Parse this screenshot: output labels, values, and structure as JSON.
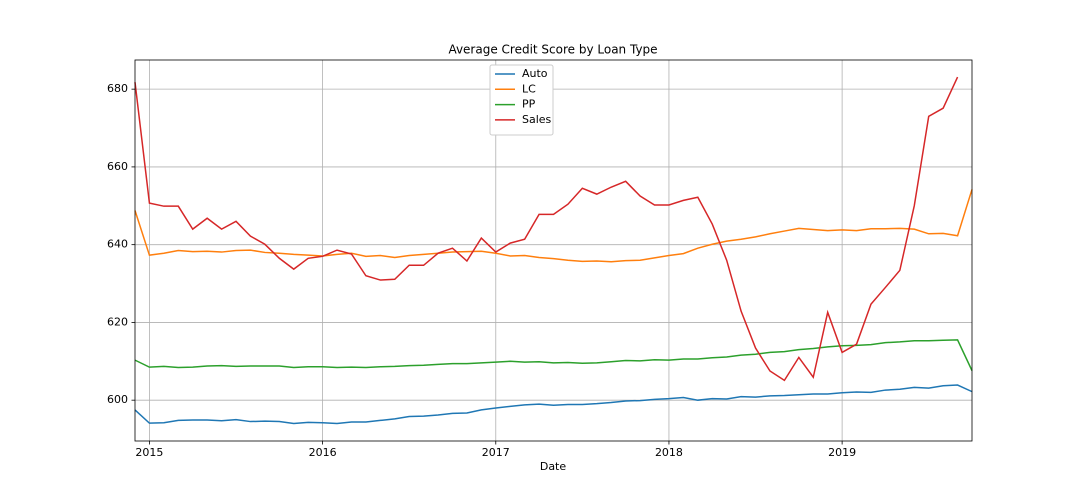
{
  "chart_data": {
    "type": "line",
    "title": "Average Credit Score by Loan Type",
    "xlabel": "Date",
    "x": [
      "2014-12",
      "2015-01",
      "2015-02",
      "2015-03",
      "2015-04",
      "2015-05",
      "2015-06",
      "2015-07",
      "2015-08",
      "2015-09",
      "2015-10",
      "2015-11",
      "2015-12",
      "2016-01",
      "2016-02",
      "2016-03",
      "2016-04",
      "2016-05",
      "2016-06",
      "2016-07",
      "2016-08",
      "2016-09",
      "2016-10",
      "2016-11",
      "2016-12",
      "2017-01",
      "2017-02",
      "2017-03",
      "2017-04",
      "2017-05",
      "2017-06",
      "2017-07",
      "2017-08",
      "2017-09",
      "2017-10",
      "2017-11",
      "2017-12",
      "2018-01",
      "2018-02",
      "2018-03",
      "2018-04",
      "2018-05",
      "2018-06",
      "2018-07",
      "2018-08",
      "2018-09",
      "2018-10",
      "2018-11",
      "2018-12",
      "2019-01",
      "2019-02",
      "2019-03",
      "2019-04",
      "2019-05",
      "2019-06",
      "2019-07",
      "2019-08",
      "2019-09",
      "2019-10"
    ],
    "series": [
      {
        "name": "Auto",
        "color": "#1f77b4",
        "values": [
          597.5,
          594.1,
          594.2,
          594.8,
          594.9,
          594.9,
          594.7,
          595,
          594.5,
          594.6,
          594.5,
          594,
          594.3,
          594.2,
          594,
          594.4,
          594.4,
          594.8,
          595.2,
          595.8,
          595.9,
          596.2,
          596.6,
          596.7,
          597.5,
          598,
          598.4,
          598.8,
          599,
          598.7,
          598.9,
          598.9,
          599.1,
          599.4,
          599.8,
          599.9,
          600.2,
          600.4,
          600.7,
          600,
          600.4,
          600.3,
          600.9,
          600.8,
          601.1,
          601.2,
          601.4,
          601.6,
          601.6,
          601.9,
          602.1,
          602,
          602.6,
          602.8,
          603.3,
          603.1,
          603.7,
          603.9,
          602.2
        ]
      },
      {
        "name": "LC",
        "color": "#ff7f0e",
        "values": [
          648.8,
          637.3,
          637.8,
          638.5,
          638.2,
          638.3,
          638.1,
          638.5,
          638.6,
          638,
          637.8,
          637.5,
          637.3,
          637.1,
          637.5,
          637.8,
          637,
          637.2,
          636.7,
          637.2,
          637.5,
          637.8,
          638.1,
          638.2,
          638.3,
          637.8,
          637.1,
          637.2,
          636.7,
          636.4,
          636,
          635.7,
          635.8,
          635.6,
          635.9,
          636,
          636.6,
          637.2,
          637.7,
          639.1,
          640.1,
          640.9,
          641.4,
          642,
          642.8,
          643.5,
          644.2,
          643.9,
          643.6,
          643.8,
          643.6,
          644.1,
          644.1,
          644.2,
          644,
          642.8,
          642.9,
          642.3,
          654.2
        ]
      },
      {
        "name": "PP",
        "color": "#2ca02c",
        "values": [
          610.3,
          608.5,
          608.7,
          608.4,
          608.5,
          608.8,
          608.9,
          608.7,
          608.8,
          608.8,
          608.8,
          608.4,
          608.6,
          608.6,
          608.4,
          608.5,
          608.4,
          608.6,
          608.7,
          608.9,
          609,
          609.2,
          609.4,
          609.4,
          609.6,
          609.8,
          610,
          609.8,
          609.9,
          609.6,
          609.7,
          609.5,
          609.6,
          609.9,
          610.2,
          610.1,
          610.4,
          610.3,
          610.6,
          610.6,
          610.9,
          611.1,
          611.6,
          611.8,
          612.3,
          612.5,
          613,
          613.3,
          613.7,
          614,
          614.1,
          614.3,
          614.8,
          615,
          615.3,
          615.3,
          615.4,
          615.5,
          607.6
        ]
      },
      {
        "name": "Sales",
        "color": "#d62728",
        "values": [
          681.8,
          650.7,
          649.9,
          649.9,
          644,
          646.8,
          644,
          646,
          642.2,
          640.1,
          636.5,
          633.7,
          636.5,
          637,
          638.6,
          637.6,
          632,
          630.9,
          631.1,
          634.7,
          634.7,
          637.8,
          639.1,
          635.8,
          641.7,
          638.1,
          640.4,
          641.4,
          647.8,
          647.8,
          650.4,
          654.5,
          653,
          654.8,
          656.3,
          652.5,
          650.2,
          650.2,
          651.4,
          652.2,
          645.3,
          636,
          622.9,
          613.4,
          607.5,
          605.1,
          611,
          605.9,
          622.6,
          612.3,
          614.4,
          624.7,
          629,
          633.4,
          650,
          673,
          675.1,
          683.1,
          null
        ]
      }
    ],
    "xlim": [
      "2014-12",
      "2019-10"
    ],
    "xticks": [
      "2015",
      "2016",
      "2017",
      "2018",
      "2019"
    ],
    "ylim": [
      589.5,
      687.5
    ],
    "yticks": [
      600,
      620,
      640,
      660,
      680
    ],
    "grid": true,
    "legend": "upper center"
  }
}
